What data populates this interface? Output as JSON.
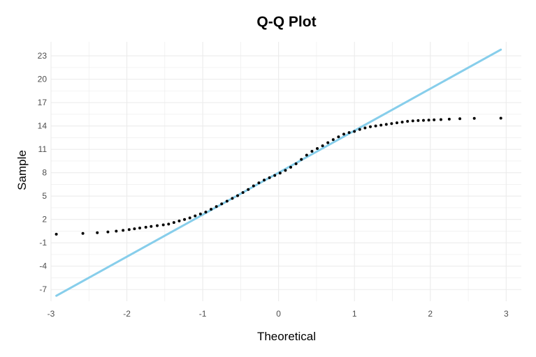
{
  "chart_data": {
    "type": "scatter",
    "title": "Q-Q Plot",
    "xlabel": "Theoretical",
    "ylabel": "Sample",
    "xlim": [
      -3.0,
      3.2
    ],
    "ylim": [
      -8.5,
      24.8
    ],
    "x_ticks": [
      -3,
      -2,
      -1,
      0,
      1,
      2,
      3
    ],
    "y_ticks": [
      -7,
      -4,
      -1,
      2,
      5,
      8,
      11,
      14,
      17,
      20,
      23
    ],
    "grid": true,
    "legend": "none",
    "colors": {
      "points": "#000000",
      "line": "#87ceeb",
      "grid": "#ebebeb"
    },
    "reference_line": {
      "x": [
        -2.93,
        2.93
      ],
      "y": [
        -7.8,
        23.8
      ]
    },
    "series": [
      {
        "values": [
          [
            -2.93,
            0.1
          ],
          [
            -2.58,
            0.2
          ],
          [
            -2.39,
            0.3
          ],
          [
            -2.25,
            0.4
          ],
          [
            -2.14,
            0.5
          ],
          [
            -2.05,
            0.6
          ],
          [
            -1.97,
            0.7
          ],
          [
            -1.9,
            0.8
          ],
          [
            -1.83,
            0.9
          ],
          [
            -1.75,
            1.0
          ],
          [
            -1.68,
            1.1
          ],
          [
            -1.6,
            1.2
          ],
          [
            -1.52,
            1.3
          ],
          [
            -1.45,
            1.4
          ],
          [
            -1.38,
            1.6
          ],
          [
            -1.31,
            1.8
          ],
          [
            -1.24,
            2.0
          ],
          [
            -1.17,
            2.2
          ],
          [
            -1.1,
            2.45
          ],
          [
            -1.03,
            2.7
          ],
          [
            -0.96,
            2.95
          ],
          [
            -0.89,
            3.3
          ],
          [
            -0.82,
            3.65
          ],
          [
            -0.75,
            4.0
          ],
          [
            -0.68,
            4.35
          ],
          [
            -0.61,
            4.7
          ],
          [
            -0.54,
            5.05
          ],
          [
            -0.47,
            5.45
          ],
          [
            -0.4,
            5.85
          ],
          [
            -0.33,
            6.3
          ],
          [
            -0.26,
            6.7
          ],
          [
            -0.19,
            7.05
          ],
          [
            -0.12,
            7.35
          ],
          [
            -0.05,
            7.65
          ],
          [
            0.02,
            7.95
          ],
          [
            0.09,
            8.3
          ],
          [
            0.16,
            8.7
          ],
          [
            0.23,
            9.15
          ],
          [
            0.3,
            9.7
          ],
          [
            0.37,
            10.25
          ],
          [
            0.44,
            10.75
          ],
          [
            0.51,
            11.1
          ],
          [
            0.58,
            11.45
          ],
          [
            0.65,
            11.85
          ],
          [
            0.72,
            12.25
          ],
          [
            0.79,
            12.6
          ],
          [
            0.86,
            12.95
          ],
          [
            0.93,
            13.15
          ],
          [
            1.0,
            13.3
          ],
          [
            1.07,
            13.55
          ],
          [
            1.14,
            13.75
          ],
          [
            1.21,
            13.9
          ],
          [
            1.28,
            14.0
          ],
          [
            1.35,
            14.1
          ],
          [
            1.42,
            14.2
          ],
          [
            1.49,
            14.3
          ],
          [
            1.56,
            14.4
          ],
          [
            1.63,
            14.5
          ],
          [
            1.7,
            14.6
          ],
          [
            1.77,
            14.65
          ],
          [
            1.84,
            14.7
          ],
          [
            1.91,
            14.72
          ],
          [
            1.98,
            14.75
          ],
          [
            2.05,
            14.78
          ],
          [
            2.14,
            14.82
          ],
          [
            2.25,
            14.87
          ],
          [
            2.39,
            14.93
          ],
          [
            2.58,
            14.98
          ],
          [
            2.93,
            15.0
          ]
        ]
      }
    ]
  }
}
